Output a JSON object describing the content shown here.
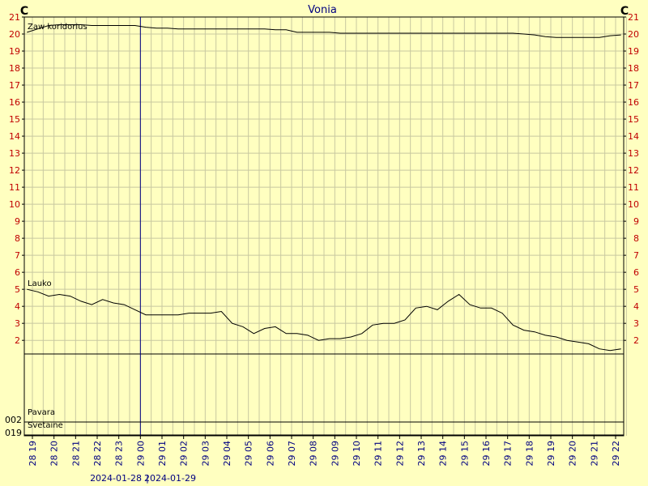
{
  "chart_data": {
    "type": "line",
    "title": "Vonia",
    "y_unit": "C",
    "categories": [
      "28 19",
      "28 20",
      "28 21",
      "28 22",
      "28 23",
      "29 00",
      "29 01",
      "29 02",
      "29 03",
      "29 04",
      "29 05",
      "29 06",
      "29 07",
      "29 08",
      "29 09",
      "29 10",
      "29 11",
      "29 12",
      "29 13",
      "29 14",
      "29 15",
      "29 16",
      "29 17",
      "29 18",
      "29 19",
      "29 20",
      "29 21",
      "29 22"
    ],
    "dates": [
      "2024-01-28",
      "2024-01-29"
    ],
    "xlim": [
      -0.375,
      27.375
    ],
    "ylim": [
      1.2,
      21
    ],
    "yticks": [
      2,
      3,
      4,
      5,
      6,
      7,
      8,
      9,
      10,
      11,
      12,
      13,
      14,
      15,
      16,
      17,
      18,
      19,
      20,
      21
    ],
    "grid": true,
    "cursor_x": 5,
    "x": [
      -0.25,
      0.25,
      0.75,
      1.25,
      1.75,
      2.25,
      2.75,
      3.25,
      3.75,
      4.25,
      4.75,
      5.25,
      5.75,
      6.25,
      6.75,
      7.25,
      7.75,
      8.25,
      8.75,
      9.25,
      9.75,
      10.25,
      10.75,
      11.25,
      11.75,
      12.25,
      12.75,
      13.25,
      13.75,
      14.25,
      14.75,
      15.25,
      15.75,
      16.25,
      16.75,
      17.25,
      17.75,
      18.25,
      18.75,
      19.25,
      19.75,
      20.25,
      20.75,
      21.25,
      21.75,
      22.25,
      22.75,
      23.25,
      23.75,
      24.25,
      24.75,
      25.25,
      25.75,
      26.25,
      26.75,
      27.25
    ],
    "series": [
      {
        "name": "Zaw koridorius",
        "color": "#000000",
        "values": [
          20.1,
          20.3,
          20.5,
          20.55,
          20.55,
          20.55,
          20.5,
          20.5,
          20.5,
          20.5,
          20.5,
          20.4,
          20.35,
          20.35,
          20.3,
          20.3,
          20.3,
          20.3,
          20.3,
          20.3,
          20.3,
          20.3,
          20.3,
          20.25,
          20.25,
          20.1,
          20.1,
          20.1,
          20.1,
          20.05,
          20.05,
          20.05,
          20.05,
          20.05,
          20.05,
          20.05,
          20.05,
          20.05,
          20.05,
          20.05,
          20.05,
          20.05,
          20.05,
          20.05,
          20.05,
          20.05,
          20.0,
          19.95,
          19.85,
          19.8,
          19.8,
          19.8,
          19.8,
          19.8,
          19.9,
          19.95
        ]
      },
      {
        "name": "Lauko",
        "color": "#000000",
        "values": [
          5.0,
          4.85,
          4.6,
          4.7,
          4.6,
          4.3,
          4.1,
          4.4,
          4.2,
          4.1,
          3.8,
          3.5,
          3.5,
          3.5,
          3.5,
          3.6,
          3.6,
          3.6,
          3.7,
          3.0,
          2.8,
          2.4,
          2.7,
          2.8,
          2.4,
          2.4,
          2.3,
          2.0,
          2.1,
          2.1,
          2.2,
          2.4,
          2.9,
          3.0,
          3.0,
          3.2,
          3.9,
          4.0,
          3.8,
          4.3,
          4.7,
          4.1,
          3.9,
          3.9,
          3.6,
          2.9,
          2.6,
          2.5,
          2.3,
          2.2,
          2.0,
          1.9,
          1.8,
          1.5,
          1.4,
          1.5
        ]
      }
    ],
    "states": [
      {
        "name": "Pavara",
        "label": "002"
      },
      {
        "name": "Svetainė",
        "label": "019"
      }
    ]
  }
}
